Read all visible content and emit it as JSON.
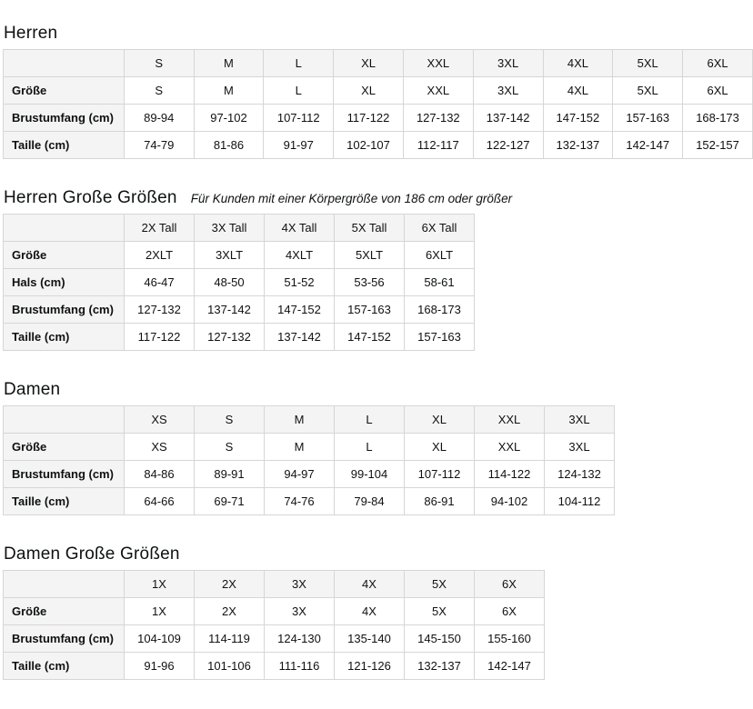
{
  "colors": {
    "header_background": "#f4f4f4",
    "border": "#d6d6d6",
    "text": "#0f1111",
    "page_background": "#ffffff"
  },
  "sections": [
    {
      "title": "Herren",
      "subtitle": "",
      "columns": [
        "S",
        "M",
        "L",
        "XL",
        "XXL",
        "3XL",
        "4XL",
        "5XL",
        "6XL"
      ],
      "rows": [
        {
          "label": "Größe",
          "values": [
            "S",
            "M",
            "L",
            "XL",
            "XXL",
            "3XL",
            "4XL",
            "5XL",
            "6XL"
          ]
        },
        {
          "label": "Brustumfang (cm)",
          "values": [
            "89-94",
            "97-102",
            "107-112",
            "117-122",
            "127-132",
            "137-142",
            "147-152",
            "157-163",
            "168-173"
          ]
        },
        {
          "label": "Taille (cm)",
          "values": [
            "74-79",
            "81-86",
            "91-97",
            "102-107",
            "112-117",
            "122-127",
            "132-137",
            "142-147",
            "152-157"
          ]
        }
      ]
    },
    {
      "title": "Herren Große Größen",
      "subtitle": "Für Kunden mit einer Körpergröße von 186 cm oder größer",
      "columns": [
        "2X Tall",
        "3X Tall",
        "4X Tall",
        "5X Tall",
        "6X Tall"
      ],
      "rows": [
        {
          "label": "Größe",
          "values": [
            "2XLT",
            "3XLT",
            "4XLT",
            "5XLT",
            "6XLT"
          ]
        },
        {
          "label": "Hals (cm)",
          "values": [
            "46-47",
            "48-50",
            "51-52",
            "53-56",
            "58-61"
          ]
        },
        {
          "label": "Brustumfang (cm)",
          "values": [
            "127-132",
            "137-142",
            "147-152",
            "157-163",
            "168-173"
          ]
        },
        {
          "label": "Taille (cm)",
          "values": [
            "117-122",
            "127-132",
            "137-142",
            "147-152",
            "157-163"
          ]
        }
      ]
    },
    {
      "title": "Damen",
      "subtitle": "",
      "columns": [
        "XS",
        "S",
        "M",
        "L",
        "XL",
        "XXL",
        "3XL"
      ],
      "rows": [
        {
          "label": "Größe",
          "values": [
            "XS",
            "S",
            "M",
            "L",
            "XL",
            "XXL",
            "3XL"
          ]
        },
        {
          "label": "Brustumfang (cm)",
          "values": [
            "84-86",
            "89-91",
            "94-97",
            "99-104",
            "107-112",
            "114-122",
            "124-132"
          ]
        },
        {
          "label": "Taille (cm)",
          "values": [
            "64-66",
            "69-71",
            "74-76",
            "79-84",
            "86-91",
            "94-102",
            "104-112"
          ]
        }
      ]
    },
    {
      "title": "Damen Große Größen",
      "subtitle": "",
      "columns": [
        "1X",
        "2X",
        "3X",
        "4X",
        "5X",
        "6X"
      ],
      "rows": [
        {
          "label": "Größe",
          "values": [
            "1X",
            "2X",
            "3X",
            "4X",
            "5X",
            "6X"
          ]
        },
        {
          "label": "Brustumfang (cm)",
          "values": [
            "104-109",
            "114-119",
            "124-130",
            "135-140",
            "145-150",
            "155-160"
          ]
        },
        {
          "label": "Taille (cm)",
          "values": [
            "91-96",
            "101-106",
            "111-116",
            "121-126",
            "132-137",
            "142-147"
          ]
        }
      ]
    }
  ]
}
